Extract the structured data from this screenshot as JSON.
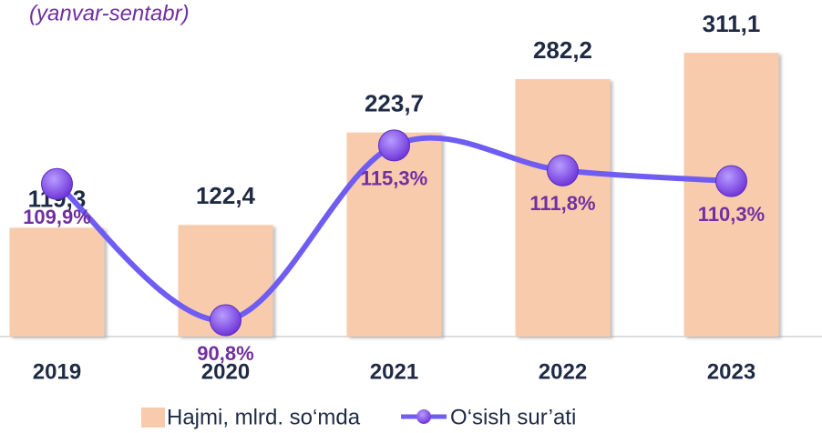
{
  "chart_data": {
    "type": "bar",
    "subtitle": "(yanvar-sentabr)",
    "categories": [
      "2019",
      "2020",
      "2021",
      "2022",
      "2023"
    ],
    "series": [
      {
        "name": "Hajmi, mlrd. so‘mda",
        "type": "bar",
        "color": "#f8cbad",
        "values": [
          119.3,
          122.4,
          223.7,
          282.2,
          311.1
        ],
        "value_labels": [
          "119,3",
          "122,4",
          "223,7",
          "282,2",
          "311,1"
        ]
      },
      {
        "name": "O‘sish sur’ati",
        "type": "line",
        "axis": "y2",
        "color": "#6f5cf2",
        "values": [
          109.9,
          90.8,
          115.3,
          111.8,
          110.3
        ],
        "value_labels": [
          "109,9%",
          "90,8%",
          "115,3%",
          "111,8%",
          "110,3%"
        ]
      }
    ],
    "ylim": [
      0,
      369
    ],
    "y2lim": [
      88.5,
      135.7
    ]
  }
}
